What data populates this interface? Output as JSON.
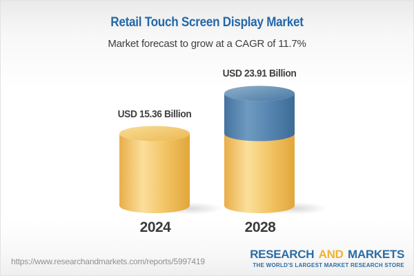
{
  "header": {
    "title": "Retail Touch Screen Display Market",
    "subtitle": "Market forecast to grow at a CAGR of 11.7%"
  },
  "chart_data": {
    "type": "bar",
    "subtype": "3d-cylinder",
    "title": "Retail Touch Screen Display Market",
    "subtitle": "Market forecast to grow at a CAGR of 11.7%",
    "unit": "USD Billion",
    "cagr_percent": 11.7,
    "categories": [
      "2024",
      "2028"
    ],
    "values": [
      15.36,
      23.91
    ],
    "value_labels": [
      "USD 15.36 Billion",
      "USD 23.91 Billion"
    ],
    "ylim": [
      0,
      26
    ],
    "grid": false,
    "legend": "none",
    "bars": [
      {
        "year": "2024",
        "value": 15.36,
        "label": "USD 15.36 Billion",
        "segments": [
          {
            "name": "base",
            "value": 15.36,
            "color": "gold"
          }
        ]
      },
      {
        "year": "2028",
        "value": 23.91,
        "label": "USD 23.91 Billion",
        "segments": [
          {
            "name": "base",
            "value": 15.36,
            "color": "gold"
          },
          {
            "name": "growth",
            "value": 8.55,
            "color": "blue"
          }
        ]
      }
    ],
    "colors": {
      "gold": "#F5C766",
      "blue": "#5586B2"
    }
  },
  "footer": {
    "url": "https://www.researchandmarkets.com/reports/5997419",
    "logo": {
      "word1": "RESEARCH",
      "word2": "AND",
      "word3": "MARKETS",
      "tagline": "THE WORLD'S LARGEST MARKET RESEARCH STORE"
    }
  }
}
